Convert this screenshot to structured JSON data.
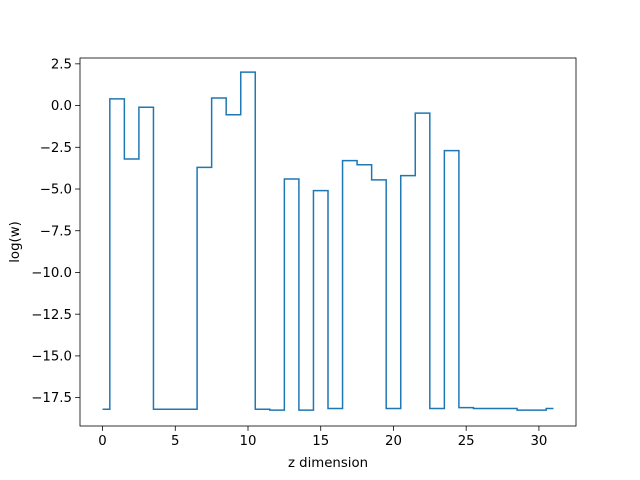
{
  "chart_data": {
    "type": "line",
    "drawstyle": "steps-mid",
    "title": "",
    "xlabel": "z dimension",
    "ylabel": "log(w)",
    "xlim": [
      -1.55,
      32.55
    ],
    "ylim": [
      -19.2,
      2.85
    ],
    "xticks": [
      0,
      5,
      10,
      15,
      20,
      25,
      30
    ],
    "xtick_labels": [
      "0",
      "5",
      "10",
      "15",
      "20",
      "25",
      "30"
    ],
    "yticks": [
      2.5,
      0.0,
      -2.5,
      -5.0,
      -7.5,
      -10.0,
      -12.5,
      -15.0,
      -17.5
    ],
    "ytick_labels": [
      "2.5",
      "0.0",
      "−2.5",
      "−5.0",
      "−7.5",
      "−10.0",
      "−12.5",
      "−15.0",
      "−17.5"
    ],
    "grid": false,
    "line_color": "#1f77b4",
    "series": [
      {
        "x": [
          0,
          1,
          2,
          3,
          4,
          5,
          6,
          7,
          8,
          9,
          10,
          11,
          12,
          13,
          14,
          15,
          16,
          17,
          18,
          19,
          20,
          21,
          22,
          23,
          24,
          25,
          26,
          27,
          28,
          29,
          30,
          31
        ],
        "y": [
          -18.2,
          0.4,
          -3.2,
          -0.1,
          -18.2,
          -18.2,
          -18.2,
          -3.7,
          0.45,
          -0.55,
          2.0,
          -18.2,
          -18.25,
          -4.4,
          -18.25,
          -5.1,
          -18.15,
          -3.3,
          -3.55,
          -4.45,
          -18.15,
          -4.2,
          -0.45,
          -18.15,
          -2.7,
          -18.1,
          -18.15,
          -18.15,
          -18.15,
          -18.25,
          -18.25,
          -18.15
        ]
      }
    ]
  }
}
